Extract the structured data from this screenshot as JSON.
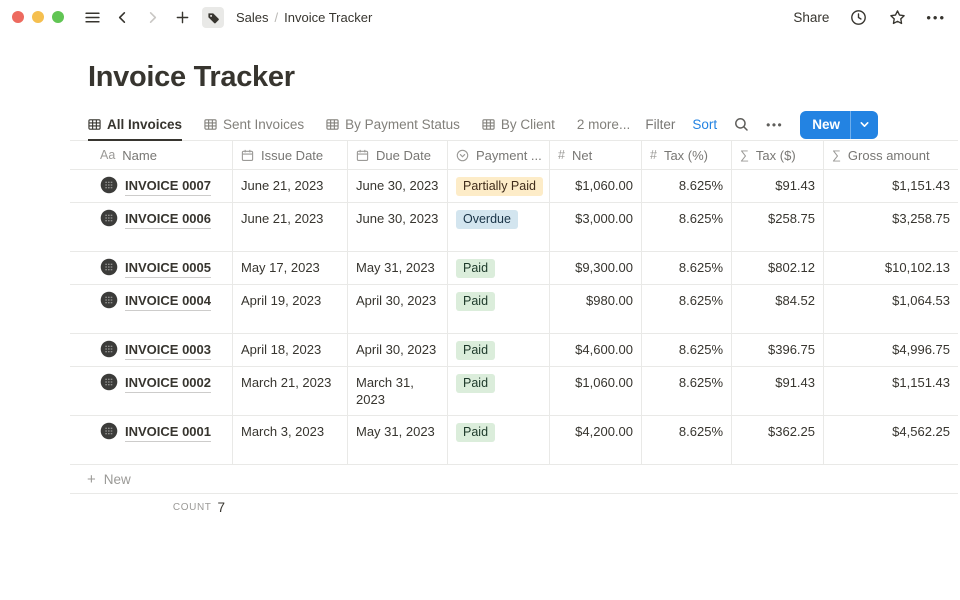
{
  "topbar": {
    "breadcrumb": {
      "parent": "Sales",
      "separator": "/",
      "current": "Invoice Tracker"
    },
    "share_label": "Share"
  },
  "page_title": "Invoice Tracker",
  "view_tabs": {
    "tabs": [
      {
        "label": "All Invoices",
        "active": true
      },
      {
        "label": "Sent Invoices",
        "active": false
      },
      {
        "label": "By Payment Status",
        "active": false
      },
      {
        "label": "By Client",
        "active": false
      }
    ],
    "more_label": "2 more..."
  },
  "toolbar": {
    "filter_label": "Filter",
    "sort_label": "Sort",
    "new_label": "New"
  },
  "table": {
    "columns": [
      {
        "label": "Name",
        "icon": "text"
      },
      {
        "label": "Issue Date",
        "icon": "calendar"
      },
      {
        "label": "Due Date",
        "icon": "calendar"
      },
      {
        "label": "Payment ...",
        "icon": "select"
      },
      {
        "label": "Net",
        "icon": "number"
      },
      {
        "label": "Tax (%)",
        "icon": "number"
      },
      {
        "label": "Tax ($)",
        "icon": "formula"
      },
      {
        "label": "Gross amount",
        "icon": "formula"
      }
    ],
    "rows": [
      {
        "name": "INVOICE 0007",
        "issue_date": "June 21, 2023",
        "due_date": "June 30, 2023",
        "status": "Partially Paid",
        "status_color": "yellow",
        "net": "$1,060.00",
        "tax_pct": "8.625%",
        "tax_usd": "$91.43",
        "gross": "$1,151.43",
        "tall": false
      },
      {
        "name": "INVOICE 0006",
        "issue_date": "June 21, 2023",
        "due_date": "June 30, 2023",
        "status": "Overdue",
        "status_color": "blue",
        "net": "$3,000.00",
        "tax_pct": "8.625%",
        "tax_usd": "$258.75",
        "gross": "$3,258.75",
        "tall": true
      },
      {
        "name": "INVOICE 0005",
        "issue_date": "May 17, 2023",
        "due_date": "May 31, 2023",
        "status": "Paid",
        "status_color": "green",
        "net": "$9,300.00",
        "tax_pct": "8.625%",
        "tax_usd": "$802.12",
        "gross": "$10,102.13",
        "tall": false
      },
      {
        "name": "INVOICE 0004",
        "issue_date": "April 19, 2023",
        "due_date": "April 30, 2023",
        "status": "Paid",
        "status_color": "green",
        "net": "$980.00",
        "tax_pct": "8.625%",
        "tax_usd": "$84.52",
        "gross": "$1,064.53",
        "tall": true
      },
      {
        "name": "INVOICE 0003",
        "issue_date": "April 18, 2023",
        "due_date": "April 30, 2023",
        "status": "Paid",
        "status_color": "green",
        "net": "$4,600.00",
        "tax_pct": "8.625%",
        "tax_usd": "$396.75",
        "gross": "$4,996.75",
        "tall": false
      },
      {
        "name": "INVOICE 0002",
        "issue_date": "March 21, 2023",
        "due_date": "March 31, 2023",
        "status": "Paid",
        "status_color": "green",
        "net": "$1,060.00",
        "tax_pct": "8.625%",
        "tax_usd": "$91.43",
        "gross": "$1,151.43",
        "tall": true
      },
      {
        "name": "INVOICE 0001",
        "issue_date": "March 3, 2023",
        "due_date": "May 31, 2023",
        "status": "Paid",
        "status_color": "green",
        "net": "$4,200.00",
        "tax_pct": "8.625%",
        "tax_usd": "$362.25",
        "gross": "$4,562.25",
        "tall": true
      }
    ],
    "new_row_label": "New",
    "count_label": "COUNT",
    "count_value": "7"
  },
  "colors": {
    "accent_blue": "#2383e2",
    "text_dark": "#37352f",
    "text_gray": "#787774",
    "border": "#e9e9e7",
    "badge_yellow_bg": "#fdecc8",
    "badge_yellow_text": "#402c1b",
    "badge_blue_bg": "#d3e5ef",
    "badge_blue_text": "#183347",
    "badge_green_bg": "#dbeddb",
    "badge_green_text": "#1c3829",
    "traffic_red": "#ed6a5f",
    "traffic_yellow": "#f5bf4f",
    "traffic_green": "#61c554"
  }
}
